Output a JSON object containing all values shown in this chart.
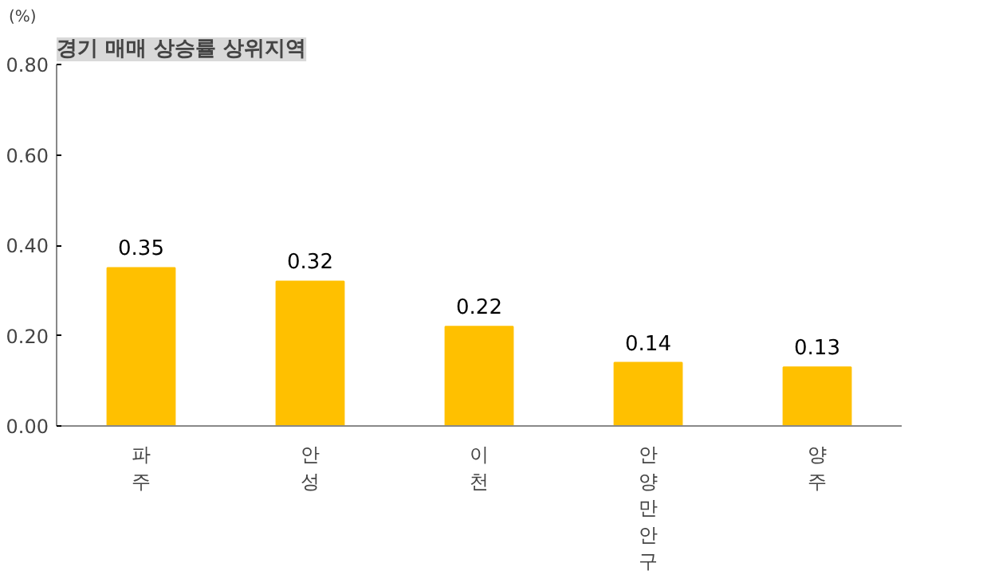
{
  "chart_data": {
    "type": "bar",
    "title": "경기 매매 상승률 상위지역",
    "ylabel": "(%)",
    "categories": [
      "파주",
      "안성",
      "이천",
      "안양 만안구",
      "양주"
    ],
    "values": [
      0.35,
      0.32,
      0.22,
      0.14,
      0.13
    ],
    "color": "#ffc000",
    "ylim": [
      0,
      0.8
    ],
    "yticks": [
      {
        "value": 0,
        "label": "0.00"
      },
      {
        "value": 0.2,
        "label": "0.20"
      },
      {
        "value": 0.4,
        "label": "0.40"
      },
      {
        "value": 0.6,
        "label": "0.60"
      },
      {
        "value": 0.8,
        "label": "0.80"
      }
    ],
    "data_labels": true,
    "grid": false
  }
}
